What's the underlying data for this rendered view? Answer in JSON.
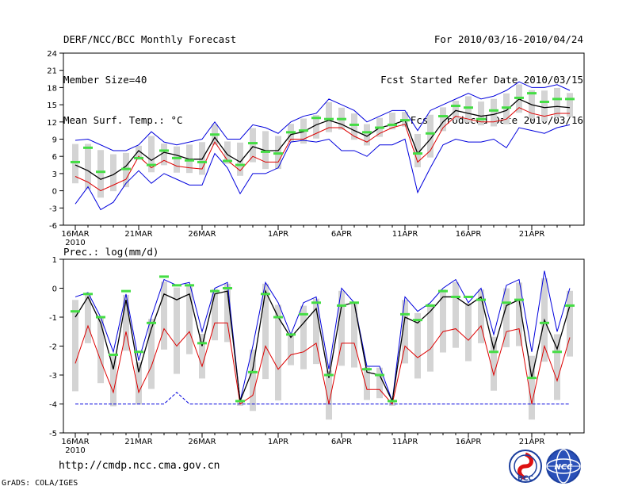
{
  "header": {
    "title": "DERF/NCC/BCC Monthly Forecast",
    "member_size": "Member Size=40",
    "variable": "Mean Surf. Temp.: °C",
    "fcst_range": "For 2010/03/16-2010/04/24",
    "start_date": "Fcst Started Refer Date 2010/03/15",
    "produced_date": "Fcst Produced Date 2010/03/16"
  },
  "footer": {
    "url": "http://cmdp.ncc.cma.gov.cn",
    "grads": "GrADS: COLA/IGES",
    "logo_left": "BCC",
    "logo_right": "NCC"
  },
  "colors": {
    "mean": "#000000",
    "max": "#0000dd",
    "min": "#dd0000",
    "box": "#d4d4d4",
    "obs": "#44dd44"
  },
  "chart_data": [
    {
      "type": "line",
      "title": "Mean Surf. Temp.: °C",
      "x_tick_labels": [
        "16MAR",
        "21MAR",
        "26MAR",
        "1APR",
        "6APR",
        "11APR",
        "16APR",
        "21APR"
      ],
      "x_tick_days": [
        0,
        5,
        10,
        16,
        21,
        26,
        31,
        36
      ],
      "x_sublabel": "2010",
      "ylim": [
        -6,
        24
      ],
      "y_ticks": [
        -6,
        -3,
        0,
        3,
        6,
        9,
        12,
        15,
        18,
        21,
        24
      ],
      "series": [
        {
          "name": "ensemble max",
          "color": "#0000dd",
          "values": [
            8.8,
            9,
            8,
            7,
            7,
            8,
            10.3,
            8.5,
            8,
            8.5,
            9,
            12,
            9,
            9,
            11.5,
            11,
            10,
            12,
            13,
            13.5,
            16,
            15,
            14,
            12,
            13,
            14,
            14,
            10.5,
            14,
            15,
            16,
            17,
            16,
            16.5,
            17.5,
            19,
            18,
            18,
            18.5,
            17.5
          ]
        },
        {
          "name": "ensemble mean",
          "color": "#000000",
          "values": [
            4.5,
            3.5,
            2,
            2.8,
            4.3,
            7,
            5.3,
            6.7,
            6.2,
            5.5,
            5.5,
            9.3,
            6.3,
            5,
            7.7,
            7,
            7,
            9.8,
            10.3,
            11.5,
            12.3,
            11.6,
            10.5,
            9.5,
            11,
            11.5,
            12.3,
            6.5,
            9,
            12,
            14,
            13.5,
            13,
            13.3,
            14,
            16,
            15,
            14.5,
            14.7,
            14.5
          ]
        },
        {
          "name": "ensemble min",
          "color": "#dd0000",
          "values": [
            2.5,
            1.5,
            0,
            1,
            2,
            6,
            4,
            5.3,
            4.3,
            4,
            3.8,
            8.5,
            5.3,
            3.5,
            6,
            5,
            5,
            9,
            9,
            10,
            11,
            11,
            9.5,
            8.5,
            10,
            11,
            11.6,
            5,
            7,
            11,
            13,
            12.5,
            12,
            12,
            12.5,
            14.5,
            13.5,
            13,
            13.5,
            13.5
          ]
        },
        {
          "name": "lower bound",
          "color": "#0000dd",
          "values": [
            -2.3,
            0.7,
            -3.3,
            -2,
            1.3,
            3.5,
            1.3,
            3,
            2,
            1,
            1,
            6.5,
            4,
            -0.5,
            3,
            3,
            4,
            8.5,
            8.8,
            8.5,
            9,
            7,
            7,
            6,
            8,
            8,
            9,
            -0.3,
            4,
            8,
            9,
            8.5,
            8.5,
            9,
            7.5,
            11,
            10.5,
            10,
            11,
            11.5
          ]
        },
        {
          "name": "observation",
          "color": "#44dd44",
          "values": [
            5,
            7.5,
            3.3,
            null,
            3.8,
            5.7,
            4.5,
            7,
            5.7,
            5.3,
            5,
            9.8,
            5.2,
            4.5,
            8.3,
            6.8,
            6.5,
            10.2,
            10.5,
            12.7,
            12.5,
            12.5,
            11.5,
            10.2,
            11,
            11.5,
            12.3,
            6.5,
            10,
            13,
            14.8,
            14.5,
            12.5,
            14,
            14.5,
            16.2,
            17,
            15.5,
            16,
            16
          ]
        }
      ]
    },
    {
      "type": "line",
      "title": "Prec.: log(mm/d)",
      "x_tick_labels": [
        "16MAR",
        "21MAR",
        "26MAR",
        "1APR",
        "6APR",
        "11APR",
        "16APR",
        "21APR"
      ],
      "x_tick_days": [
        0,
        5,
        10,
        16,
        21,
        26,
        31,
        36
      ],
      "x_sublabel": "2010",
      "ylim": [
        -5,
        1
      ],
      "y_ticks": [
        -5,
        -4,
        -3,
        -2,
        -1,
        0,
        1
      ],
      "series": [
        {
          "name": "ensemble max",
          "color": "#0000dd",
          "values": [
            -0.3,
            -0.15,
            -1,
            -2.2,
            -0.2,
            -2.5,
            -1,
            0.3,
            0.1,
            0.2,
            -1.5,
            0,
            0.2,
            -3.9,
            -2,
            0.2,
            -0.5,
            -1.6,
            -0.5,
            -0.3,
            -2.8,
            0,
            -0.5,
            -2.7,
            -2.7,
            -3.9,
            -0.3,
            -0.8,
            -0.5,
            0,
            0.3,
            -0.5,
            0,
            -1.6,
            0.1,
            0.3,
            -2.2,
            0.6,
            -1.5,
            0
          ]
        },
        {
          "name": "ensemble mean",
          "color": "#000000",
          "values": [
            -1,
            -0.3,
            -1.2,
            -2.8,
            -0.4,
            -2.9,
            -1.4,
            -0.2,
            -0.4,
            -0.2,
            -2,
            -0.2,
            -0.1,
            -3.9,
            -2.8,
            -0.1,
            -1,
            -1.7,
            -1.2,
            -0.7,
            -3.1,
            -0.6,
            -0.5,
            -2.9,
            -3,
            -3.9,
            -1,
            -1.2,
            -0.8,
            -0.3,
            -0.3,
            -0.6,
            -0.3,
            -2.1,
            -0.6,
            -0.4,
            -3.1,
            -1.1,
            -2.1,
            -0.6
          ]
        },
        {
          "name": "ensemble min",
          "color": "#dd0000",
          "values": [
            -2.6,
            -1.3,
            -2.5,
            -3.6,
            -1.5,
            -3.6,
            -2.7,
            -1.4,
            -2,
            -1.5,
            -2.7,
            -1.2,
            -1.2,
            -4,
            -3.7,
            -2,
            -2.8,
            -2.3,
            -2.2,
            -1.9,
            -4,
            -1.9,
            -1.9,
            -3.5,
            -3.5,
            -4,
            -2,
            -2.4,
            -2.1,
            -1.5,
            -1.4,
            -1.8,
            -1.3,
            -3,
            -1.5,
            -1.4,
            -4,
            -2,
            -3.2,
            -1.7
          ]
        },
        {
          "name": "lower bound",
          "color": "#0000dd",
          "values": [
            -4,
            -4,
            -4,
            -4,
            -4,
            -4,
            -4,
            -4,
            -3.6,
            -4,
            -4,
            -4,
            -4,
            -4,
            -4,
            -4,
            -4,
            -4,
            -4,
            -4,
            -4,
            -4,
            -4,
            -4,
            -4,
            -4,
            -4,
            -4,
            -4,
            -4,
            -4,
            -4,
            -4,
            -4,
            -4,
            -4,
            -4,
            -4,
            -4,
            -4
          ]
        },
        {
          "name": "observation",
          "color": "#44dd44",
          "values": [
            -0.8,
            -0.2,
            -1,
            -2.3,
            -0.1,
            -2.2,
            -1.2,
            0.4,
            0.1,
            0.1,
            -1.9,
            -0.1,
            0,
            -3.9,
            -2.9,
            -0.2,
            -1,
            -1.6,
            -0.9,
            -0.5,
            -3,
            -0.6,
            -0.5,
            -2.8,
            -3,
            -3.9,
            -0.9,
            -1.1,
            -0.6,
            -0.1,
            -0.3,
            -0.3,
            -0.4,
            -2.2,
            -0.5,
            -0.4,
            -3.1,
            -1.2,
            -2.2,
            -0.6
          ]
        }
      ]
    }
  ]
}
